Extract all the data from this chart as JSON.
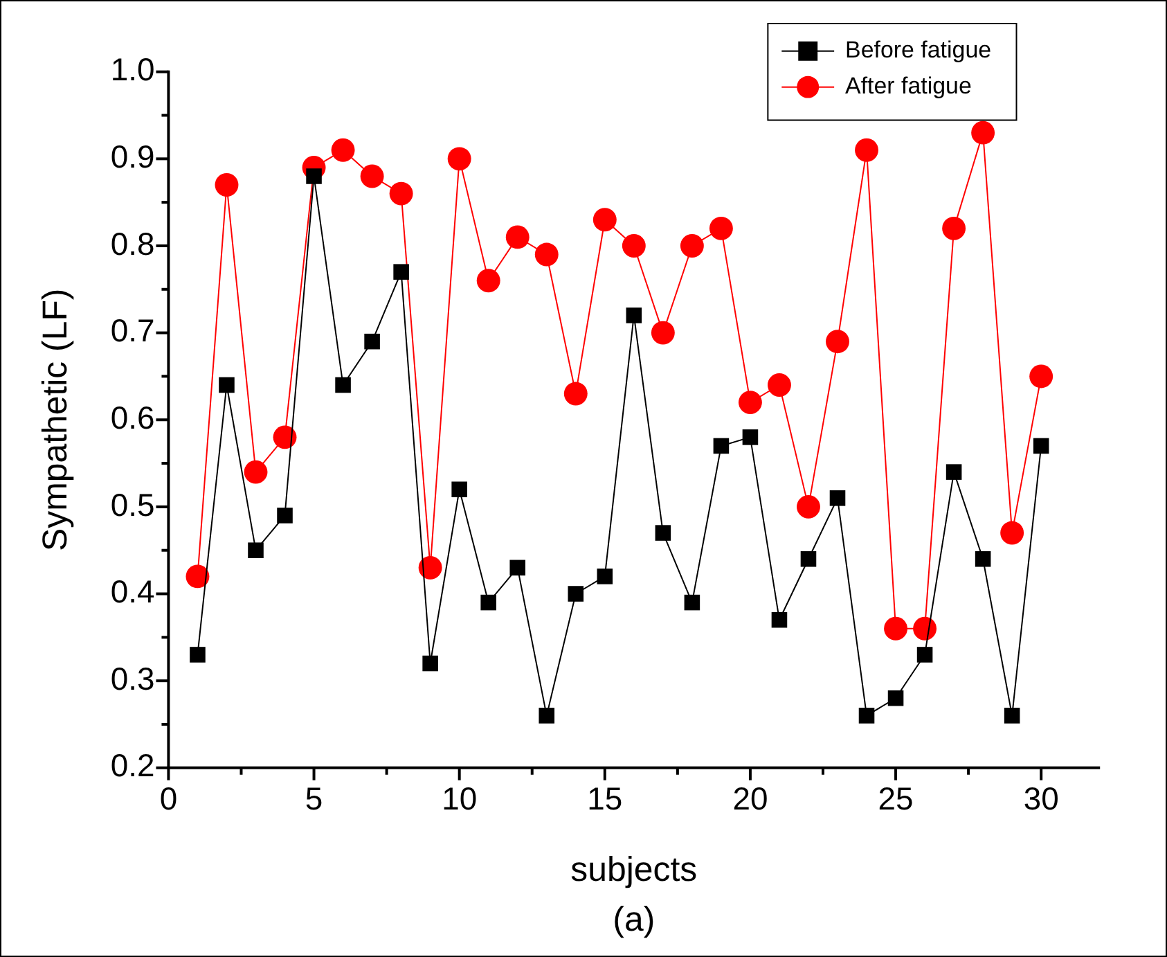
{
  "chart_data": {
    "type": "line",
    "xlabel": "subjects",
    "ylabel": "Sympathetic (LF)",
    "x": [
      1,
      2,
      3,
      4,
      5,
      6,
      7,
      8,
      9,
      10,
      11,
      12,
      13,
      14,
      15,
      16,
      17,
      18,
      19,
      20,
      21,
      22,
      23,
      24,
      25,
      26,
      27,
      28,
      29,
      30
    ],
    "series": [
      {
        "name": "Before fatigue",
        "color": "#000000",
        "marker": "square",
        "values": [
          0.33,
          0.64,
          0.45,
          0.49,
          0.88,
          0.64,
          0.69,
          0.77,
          0.32,
          0.52,
          0.39,
          0.43,
          0.26,
          0.4,
          0.42,
          0.72,
          0.47,
          0.39,
          0.57,
          0.58,
          0.37,
          0.44,
          0.51,
          0.26,
          0.28,
          0.33,
          0.54,
          0.44,
          0.26,
          0.57
        ]
      },
      {
        "name": "After fatigue",
        "color": "#ff0000",
        "marker": "circle",
        "values": [
          0.42,
          0.87,
          0.54,
          0.58,
          0.89,
          0.91,
          0.88,
          0.86,
          0.43,
          0.9,
          0.76,
          0.81,
          0.79,
          0.63,
          0.83,
          0.8,
          0.7,
          0.8,
          0.82,
          0.62,
          0.64,
          0.5,
          0.69,
          0.91,
          0.36,
          0.36,
          0.82,
          0.93,
          0.47,
          0.65
        ]
      }
    ],
    "xlim": [
      0,
      32
    ],
    "xticks": [
      0,
      {
        "value": 2.5,
        "label": null
      },
      5,
      {
        "value": 7.5,
        "label": null
      },
      10,
      {
        "value": 12.5,
        "label": null
      },
      15,
      {
        "value": 17.5,
        "label": null
      },
      20,
      {
        "value": 22.5,
        "label": null
      },
      25,
      {
        "value": 27.5,
        "label": null
      },
      30
    ],
    "ylim": [
      0.2,
      1.0
    ],
    "yticks": [
      {
        "value": 0.2,
        "label": "0.2"
      },
      {
        "value": 0.25,
        "label": null
      },
      {
        "value": 0.3,
        "label": "0.3"
      },
      {
        "value": 0.35,
        "label": null
      },
      {
        "value": 0.4,
        "label": "0.4"
      },
      {
        "value": 0.45,
        "label": null
      },
      {
        "value": 0.5,
        "label": "0.5"
      },
      {
        "value": 0.55,
        "label": null
      },
      {
        "value": 0.6,
        "label": "0.6"
      },
      {
        "value": 0.65,
        "label": null
      },
      {
        "value": 0.7,
        "label": "0.7"
      },
      {
        "value": 0.75,
        "label": null
      },
      {
        "value": 0.8,
        "label": "0.8"
      },
      {
        "value": 0.85,
        "label": null
      },
      {
        "value": 0.9,
        "label": "0.9"
      },
      {
        "value": 0.95,
        "label": null
      },
      {
        "value": 1.0,
        "label": "1.0"
      }
    ],
    "grid": false,
    "legend": "top right",
    "line_style": "solid",
    "annotations": [
      "(a)"
    ]
  }
}
